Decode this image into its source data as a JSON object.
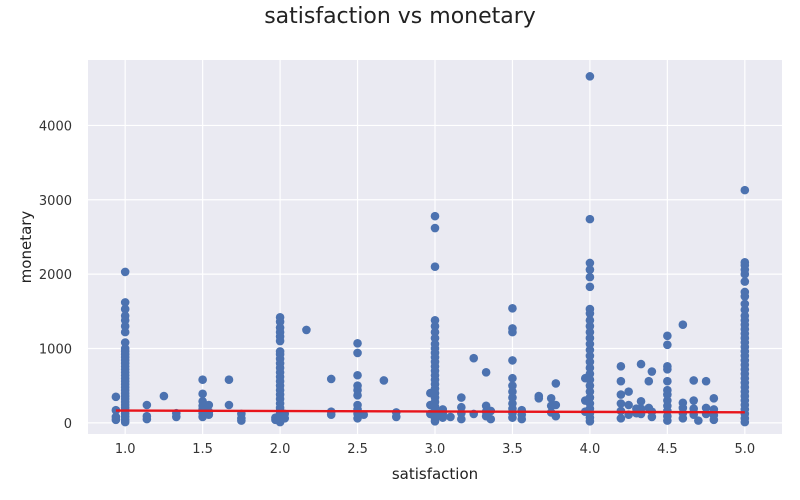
{
  "chart_data": {
    "type": "scatter",
    "title": "satisfaction vs monetary",
    "xlabel": "satisfaction",
    "ylabel": "monetary",
    "xlim": [
      0.76,
      5.24
    ],
    "ylim": [
      -150,
      4880
    ],
    "xticks": [
      1.0,
      1.5,
      2.0,
      2.5,
      3.0,
      3.5,
      4.0,
      4.5,
      5.0
    ],
    "xtick_labels": [
      "1.0",
      "1.5",
      "2.0",
      "2.5",
      "3.0",
      "3.5",
      "4.0",
      "4.5",
      "5.0"
    ],
    "yticks": [
      0,
      1000,
      2000,
      3000,
      4000
    ],
    "ytick_labels": [
      "0",
      "1000",
      "2000",
      "3000",
      "4000"
    ],
    "grid": true,
    "background": "#eaeaf2",
    "grid_color": "#ffffff",
    "point_color": "#4c72b0",
    "line_color": "#e8141b",
    "trend_line": {
      "x": [
        0.94,
        5.0
      ],
      "y": [
        165,
        142
      ]
    },
    "points": [
      [
        0.94,
        350
      ],
      [
        0.94,
        170
      ],
      [
        0.94,
        80
      ],
      [
        0.94,
        40
      ],
      [
        1.0,
        2030
      ],
      [
        1.0,
        1620
      ],
      [
        1.0,
        1530
      ],
      [
        1.0,
        1440
      ],
      [
        1.0,
        1380
      ],
      [
        1.0,
        1300
      ],
      [
        1.0,
        1220
      ],
      [
        1.0,
        1080
      ],
      [
        1.0,
        1000
      ],
      [
        1.0,
        960
      ],
      [
        1.0,
        920
      ],
      [
        1.0,
        880
      ],
      [
        1.0,
        840
      ],
      [
        1.0,
        800
      ],
      [
        1.0,
        760
      ],
      [
        1.0,
        720
      ],
      [
        1.0,
        680
      ],
      [
        1.0,
        640
      ],
      [
        1.0,
        600
      ],
      [
        1.0,
        560
      ],
      [
        1.0,
        520
      ],
      [
        1.0,
        480
      ],
      [
        1.0,
        440
      ],
      [
        1.0,
        400
      ],
      [
        1.0,
        360
      ],
      [
        1.0,
        320
      ],
      [
        1.0,
        280
      ],
      [
        1.0,
        240
      ],
      [
        1.0,
        200
      ],
      [
        1.0,
        160
      ],
      [
        1.0,
        120
      ],
      [
        1.0,
        80
      ],
      [
        1.0,
        40
      ],
      [
        1.0,
        10
      ],
      [
        1.14,
        240
      ],
      [
        1.14,
        90
      ],
      [
        1.14,
        50
      ],
      [
        1.25,
        360
      ],
      [
        1.33,
        130
      ],
      [
        1.33,
        80
      ],
      [
        1.5,
        580
      ],
      [
        1.5,
        390
      ],
      [
        1.5,
        290
      ],
      [
        1.5,
        230
      ],
      [
        1.5,
        180
      ],
      [
        1.5,
        130
      ],
      [
        1.5,
        80
      ],
      [
        1.54,
        240
      ],
      [
        1.54,
        150
      ],
      [
        1.54,
        110
      ],
      [
        1.67,
        580
      ],
      [
        1.67,
        240
      ],
      [
        1.75,
        120
      ],
      [
        1.75,
        60
      ],
      [
        1.75,
        30
      ],
      [
        1.97,
        70
      ],
      [
        1.97,
        40
      ],
      [
        2.0,
        1420
      ],
      [
        2.0,
        1360
      ],
      [
        2.0,
        1280
      ],
      [
        2.0,
        1220
      ],
      [
        2.0,
        1160
      ],
      [
        2.0,
        1100
      ],
      [
        2.0,
        960
      ],
      [
        2.0,
        920
      ],
      [
        2.0,
        860
      ],
      [
        2.0,
        800
      ],
      [
        2.0,
        740
      ],
      [
        2.0,
        680
      ],
      [
        2.0,
        620
      ],
      [
        2.0,
        560
      ],
      [
        2.0,
        500
      ],
      [
        2.0,
        440
      ],
      [
        2.0,
        380
      ],
      [
        2.0,
        320
      ],
      [
        2.0,
        260
      ],
      [
        2.0,
        200
      ],
      [
        2.0,
        160
      ],
      [
        2.0,
        120
      ],
      [
        2.0,
        80
      ],
      [
        2.0,
        40
      ],
      [
        2.0,
        10
      ],
      [
        2.03,
        120
      ],
      [
        2.03,
        60
      ],
      [
        2.17,
        1250
      ],
      [
        2.33,
        590
      ],
      [
        2.33,
        150
      ],
      [
        2.33,
        110
      ],
      [
        2.5,
        1070
      ],
      [
        2.5,
        940
      ],
      [
        2.5,
        640
      ],
      [
        2.5,
        500
      ],
      [
        2.5,
        440
      ],
      [
        2.5,
        370
      ],
      [
        2.5,
        240
      ],
      [
        2.5,
        180
      ],
      [
        2.5,
        120
      ],
      [
        2.5,
        60
      ],
      [
        2.54,
        110
      ],
      [
        2.67,
        570
      ],
      [
        2.75,
        140
      ],
      [
        2.75,
        80
      ],
      [
        2.97,
        400
      ],
      [
        2.97,
        240
      ],
      [
        2.97,
        120
      ],
      [
        3.0,
        2780
      ],
      [
        3.0,
        2620
      ],
      [
        3.0,
        2100
      ],
      [
        3.0,
        1380
      ],
      [
        3.0,
        1300
      ],
      [
        3.0,
        1220
      ],
      [
        3.0,
        1140
      ],
      [
        3.0,
        1060
      ],
      [
        3.0,
        1000
      ],
      [
        3.0,
        940
      ],
      [
        3.0,
        880
      ],
      [
        3.0,
        820
      ],
      [
        3.0,
        760
      ],
      [
        3.0,
        700
      ],
      [
        3.0,
        640
      ],
      [
        3.0,
        580
      ],
      [
        3.0,
        520
      ],
      [
        3.0,
        460
      ],
      [
        3.0,
        400
      ],
      [
        3.0,
        340
      ],
      [
        3.0,
        280
      ],
      [
        3.0,
        220
      ],
      [
        3.0,
        160
      ],
      [
        3.0,
        110
      ],
      [
        3.0,
        60
      ],
      [
        3.0,
        20
      ],
      [
        3.05,
        180
      ],
      [
        3.05,
        120
      ],
      [
        3.05,
        70
      ],
      [
        3.1,
        80
      ],
      [
        3.17,
        340
      ],
      [
        3.17,
        210
      ],
      [
        3.17,
        130
      ],
      [
        3.17,
        50
      ],
      [
        3.25,
        870
      ],
      [
        3.25,
        120
      ],
      [
        3.33,
        680
      ],
      [
        3.33,
        230
      ],
      [
        3.33,
        150
      ],
      [
        3.33,
        90
      ],
      [
        3.36,
        160
      ],
      [
        3.36,
        50
      ],
      [
        3.5,
        1540
      ],
      [
        3.5,
        1270
      ],
      [
        3.5,
        1220
      ],
      [
        3.5,
        840
      ],
      [
        3.5,
        600
      ],
      [
        3.5,
        500
      ],
      [
        3.5,
        420
      ],
      [
        3.5,
        340
      ],
      [
        3.5,
        260
      ],
      [
        3.5,
        190
      ],
      [
        3.5,
        130
      ],
      [
        3.5,
        70
      ],
      [
        3.56,
        170
      ],
      [
        3.56,
        110
      ],
      [
        3.56,
        50
      ],
      [
        3.67,
        360
      ],
      [
        3.67,
        330
      ],
      [
        3.75,
        330
      ],
      [
        3.75,
        230
      ],
      [
        3.75,
        140
      ],
      [
        3.78,
        530
      ],
      [
        3.78,
        240
      ],
      [
        3.78,
        90
      ],
      [
        3.97,
        600
      ],
      [
        3.97,
        300
      ],
      [
        3.97,
        150
      ],
      [
        4.0,
        4660
      ],
      [
        4.0,
        2740
      ],
      [
        4.0,
        2150
      ],
      [
        4.0,
        2060
      ],
      [
        4.0,
        1960
      ],
      [
        4.0,
        1830
      ],
      [
        4.0,
        1530
      ],
      [
        4.0,
        1470
      ],
      [
        4.0,
        1380
      ],
      [
        4.0,
        1300
      ],
      [
        4.0,
        1220
      ],
      [
        4.0,
        1140
      ],
      [
        4.0,
        1060
      ],
      [
        4.0,
        980
      ],
      [
        4.0,
        900
      ],
      [
        4.0,
        820
      ],
      [
        4.0,
        740
      ],
      [
        4.0,
        660
      ],
      [
        4.0,
        580
      ],
      [
        4.0,
        500
      ],
      [
        4.0,
        420
      ],
      [
        4.0,
        340
      ],
      [
        4.0,
        260
      ],
      [
        4.0,
        190
      ],
      [
        4.0,
        130
      ],
      [
        4.0,
        70
      ],
      [
        4.0,
        20
      ],
      [
        4.2,
        760
      ],
      [
        4.2,
        560
      ],
      [
        4.2,
        380
      ],
      [
        4.2,
        260
      ],
      [
        4.2,
        160
      ],
      [
        4.2,
        60
      ],
      [
        4.25,
        420
      ],
      [
        4.25,
        240
      ],
      [
        4.25,
        110
      ],
      [
        4.3,
        190
      ],
      [
        4.3,
        130
      ],
      [
        4.33,
        790
      ],
      [
        4.33,
        290
      ],
      [
        4.33,
        190
      ],
      [
        4.33,
        120
      ],
      [
        4.38,
        560
      ],
      [
        4.38,
        200
      ],
      [
        4.4,
        690
      ],
      [
        4.4,
        150
      ],
      [
        4.4,
        80
      ],
      [
        4.5,
        1170
      ],
      [
        4.5,
        1050
      ],
      [
        4.5,
        760
      ],
      [
        4.5,
        720
      ],
      [
        4.5,
        560
      ],
      [
        4.5,
        440
      ],
      [
        4.5,
        380
      ],
      [
        4.5,
        300
      ],
      [
        4.5,
        230
      ],
      [
        4.5,
        160
      ],
      [
        4.5,
        90
      ],
      [
        4.5,
        30
      ],
      [
        4.6,
        1320
      ],
      [
        4.6,
        270
      ],
      [
        4.6,
        200
      ],
      [
        4.6,
        130
      ],
      [
        4.6,
        60
      ],
      [
        4.67,
        570
      ],
      [
        4.67,
        300
      ],
      [
        4.67,
        190
      ],
      [
        4.67,
        110
      ],
      [
        4.7,
        30
      ],
      [
        4.75,
        560
      ],
      [
        4.75,
        200
      ],
      [
        4.75,
        120
      ],
      [
        4.8,
        330
      ],
      [
        4.8,
        180
      ],
      [
        4.8,
        100
      ],
      [
        4.8,
        40
      ],
      [
        5.0,
        3130
      ],
      [
        5.0,
        2160
      ],
      [
        5.0,
        2120
      ],
      [
        5.0,
        2060
      ],
      [
        5.0,
        2000
      ],
      [
        5.0,
        1900
      ],
      [
        5.0,
        1760
      ],
      [
        5.0,
        1700
      ],
      [
        5.0,
        1600
      ],
      [
        5.0,
        1520
      ],
      [
        5.0,
        1440
      ],
      [
        5.0,
        1380
      ],
      [
        5.0,
        1320
      ],
      [
        5.0,
        1260
      ],
      [
        5.0,
        1200
      ],
      [
        5.0,
        1140
      ],
      [
        5.0,
        1080
      ],
      [
        5.0,
        1020
      ],
      [
        5.0,
        960
      ],
      [
        5.0,
        900
      ],
      [
        5.0,
        840
      ],
      [
        5.0,
        780
      ],
      [
        5.0,
        720
      ],
      [
        5.0,
        660
      ],
      [
        5.0,
        600
      ],
      [
        5.0,
        540
      ],
      [
        5.0,
        480
      ],
      [
        5.0,
        420
      ],
      [
        5.0,
        360
      ],
      [
        5.0,
        300
      ],
      [
        5.0,
        240
      ],
      [
        5.0,
        180
      ],
      [
        5.0,
        120
      ],
      [
        5.0,
        60
      ],
      [
        5.0,
        10
      ]
    ]
  }
}
